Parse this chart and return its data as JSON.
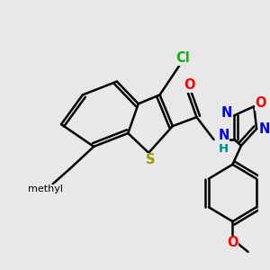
{
  "background_color": "#e8e8e8",
  "bond_color": "#000000",
  "bond_width": 1.8,
  "atom_labels": {
    "Cl": {
      "color": "#00bb00",
      "fontsize": 10.5,
      "fontweight": "bold"
    },
    "O": {
      "color": "#ff0000",
      "fontsize": 10.5,
      "fontweight": "bold"
    },
    "N": {
      "color": "#0000ee",
      "fontsize": 10.5,
      "fontweight": "bold"
    },
    "S": {
      "color": "#999900",
      "fontsize": 10.5,
      "fontweight": "bold"
    },
    "H": {
      "color": "#008888",
      "fontsize": 9.5,
      "fontweight": "bold"
    },
    "methyl": {
      "color": "#000000",
      "fontsize": 9,
      "fontweight": "normal"
    }
  },
  "figsize": [
    3.0,
    3.0
  ],
  "dpi": 100
}
